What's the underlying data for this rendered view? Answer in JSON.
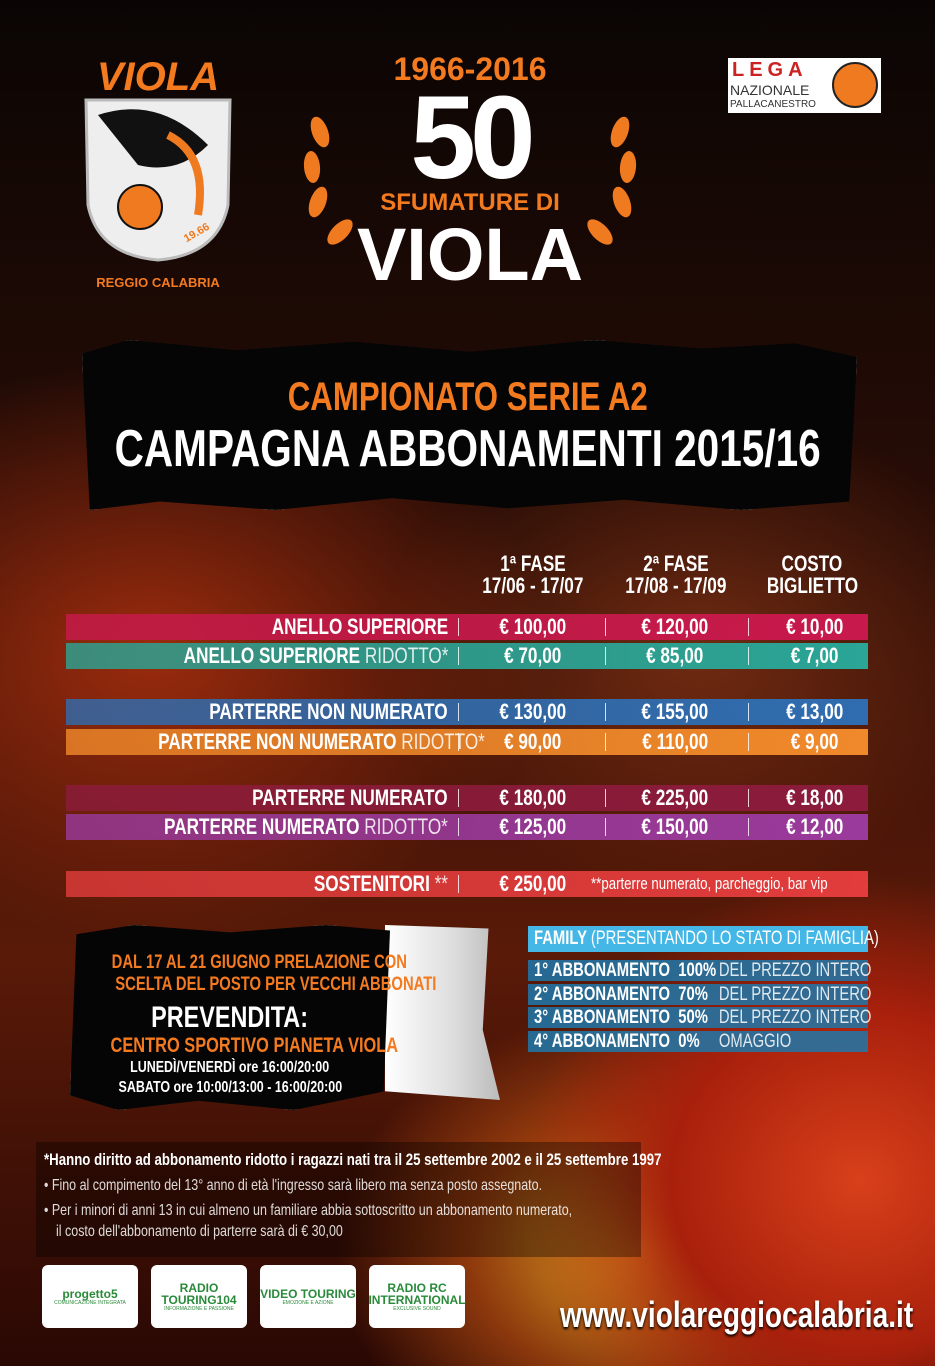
{
  "logo": {
    "name": "VIOLA",
    "city": "REGGIO CALABRIA",
    "year": "19.66"
  },
  "title": {
    "years": "1966-2016",
    "number": "50",
    "subtitle": "SFUMATURE DI",
    "name": "VIOLA"
  },
  "lega": {
    "letters": "LEGA",
    "line1": "NAZIONALE",
    "line2": "PALLACANESTRO"
  },
  "banner": {
    "line1": "CAMPIONATO SERIE A2",
    "line2": "CAMPAGNA ABBONAMENTI 2015/16"
  },
  "table": {
    "headers": [
      {
        "l1": "1ª FASE",
        "l2": "17/06 - 17/07"
      },
      {
        "l1": "2ª FASE",
        "l2": "17/08 - 17/09"
      },
      {
        "l1": "COSTO",
        "l2": "BIGLIETTO"
      }
    ],
    "rows": [
      {
        "label": "ANELLO SUPERIORE",
        "suffix": "",
        "values": [
          "€ 100,00",
          "€ 120,00",
          "€ 10,00"
        ],
        "color": "#c8194c"
      },
      {
        "label": "ANELLO SUPERIORE",
        "suffix": "RIDOTTO*",
        "values": [
          "€ 70,00",
          "€ 85,00",
          "€ 7,00"
        ],
        "color": "#2aa596"
      },
      {
        "label": "PARTERRE NON NUMERATO",
        "suffix": "",
        "values": [
          "€ 130,00",
          "€ 155,00",
          "€ 13,00"
        ],
        "color": "#2f6db0"
      },
      {
        "label": "PARTERRE NON NUMERATO",
        "suffix": "RIDOTTO*",
        "values": [
          "€ 90,00",
          "€ 110,00",
          "€ 9,00"
        ],
        "color": "#f0892a"
      },
      {
        "label": "PARTERRE NUMERATO",
        "suffix": "",
        "values": [
          "€ 180,00",
          "€ 225,00",
          "€ 18,00"
        ],
        "color": "#8c1b3c"
      },
      {
        "label": "PARTERRE NUMERATO",
        "suffix": "RIDOTTO*",
        "values": [
          "€ 125,00",
          "€ 150,00",
          "€ 12,00"
        ],
        "color": "#9a3a9c"
      },
      {
        "label": "SOSTENITORI",
        "suffix": "**",
        "values": [
          "€ 250,00"
        ],
        "note": "**parterre numerato, parcheggio, bar vip",
        "color": "#e23c3c"
      }
    ]
  },
  "presale": {
    "line1": "DAL 17 AL 21 GIUGNO PRELAZIONE CON",
    "line2": "SCELTA DEL POSTO PER VECCHI ABBONATI",
    "heading": "PREVENDITA:",
    "place": "CENTRO SPORTIVO PIANETA VIOLA",
    "hours1": "LUNEDÌ/VENERDÌ   ore 16:00/20:00",
    "hours2": "SABATO   ore 10:00/13:00 - 16:00/20:00"
  },
  "family": {
    "title": "FAMILY",
    "title_note": "(PRESENTANDO LO STATO DI FAMIGLIA)",
    "items": [
      {
        "label": "1° ABBONAMENTO",
        "pct": "100%",
        "desc": "DEL PREZZO INTERO"
      },
      {
        "label": "2° ABBONAMENTO",
        "pct": "70%",
        "desc": "DEL PREZZO INTERO"
      },
      {
        "label": "3° ABBONAMENTO",
        "pct": "50%",
        "desc": "DEL PREZZO INTERO"
      },
      {
        "label": "4° ABBONAMENTO",
        "pct": "0%",
        "desc": "OMAGGIO"
      }
    ]
  },
  "notes": {
    "ridotto": "*Hanno diritto ad abbonamento ridotto i ragazzi nati tra il 25 settembre 2002 e il 25 settembre 1997",
    "bullet1": "Fino al compimento del 13° anno di età l'ingresso sarà libero ma senza posto assegnato.",
    "bullet2a": "Per i minori di anni 13 in cui almeno un familiare abbia sottoscritto un abbonamento numerato,",
    "bullet2b": "il costo dell'abbonamento di parterre sarà di € 30,00"
  },
  "sponsors": [
    {
      "name": "progetto5",
      "tag": "COMUNICAZIONE INTEGRATA"
    },
    {
      "name": "RADIO TOURING104",
      "tag": "INFORMAZIONE E PASSIONE"
    },
    {
      "name": "VIDEO TOURING",
      "tag": "EMOZIONE E AZIONE"
    },
    {
      "name": "RADIO RC INTERNATIONAL",
      "tag": "EXCLUSIVE SOUND"
    }
  ],
  "website": "www.violareggiocalabria.it"
}
